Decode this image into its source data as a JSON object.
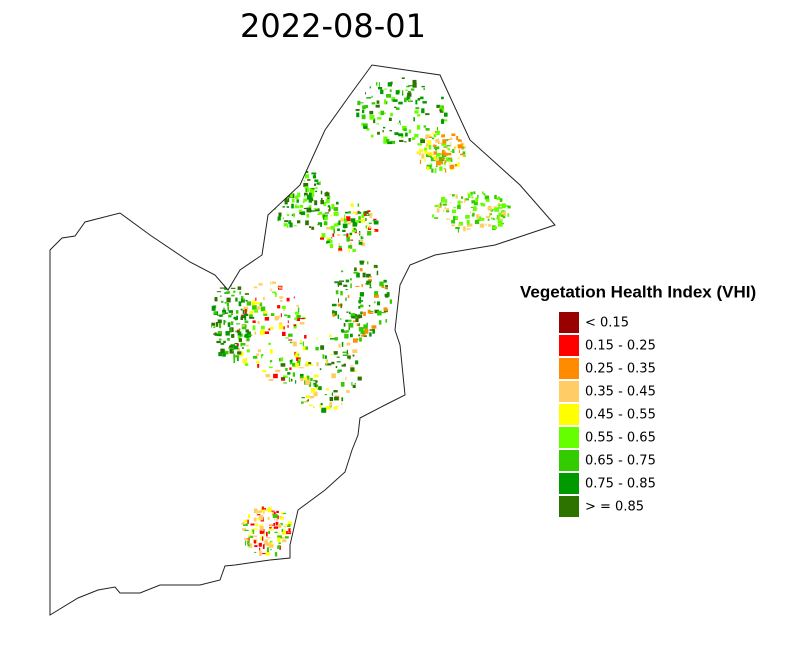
{
  "map": {
    "title": "2022-08-01",
    "legend": {
      "title": "Vegetation Health Index (VHI)",
      "items": [
        {
          "label": "< 0.15",
          "color": "#990000"
        },
        {
          "label": "0.15 - 0.25",
          "color": "#ff0000"
        },
        {
          "label": "0.25 - 0.35",
          "color": "#ff8c00"
        },
        {
          "label": "0.35 - 0.45",
          "color": "#ffcc66"
        },
        {
          "label": "0.45 - 0.55",
          "color": "#ffff00"
        },
        {
          "label": "0.55 - 0.65",
          "color": "#66ff00"
        },
        {
          "label": "0.65 - 0.75",
          "color": "#33cc00"
        },
        {
          "label": "0.75 - 0.85",
          "color": "#009900"
        },
        {
          "label": "> = 0.85",
          "color": "#2d7300"
        }
      ]
    }
  }
}
